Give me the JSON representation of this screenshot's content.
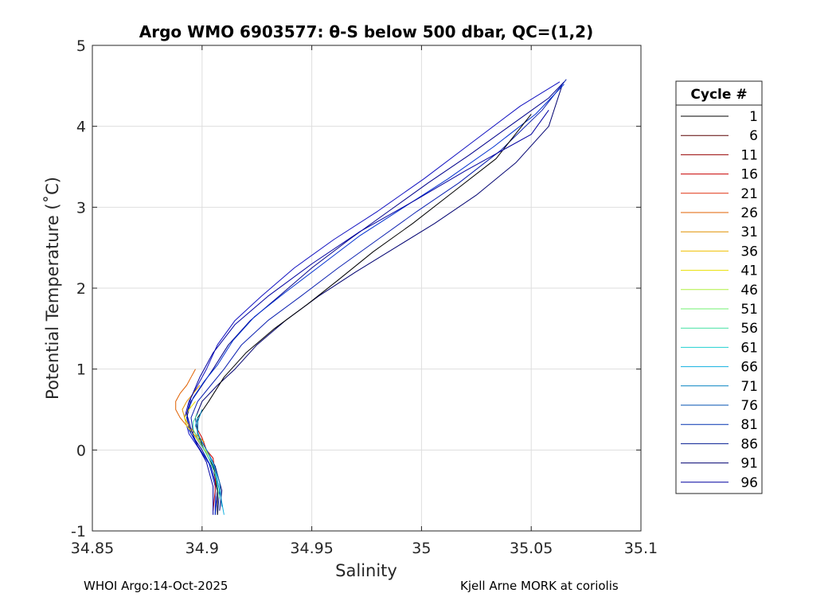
{
  "chart_data": {
    "type": "line",
    "title": "Argo WMO 6903577: θ-S below 500 dbar,  QC=(1,2)",
    "xlabel": "Salinity",
    "ylabel": "Potential Temperature (˚C)",
    "xlim": [
      34.85,
      35.1
    ],
    "ylim": [
      -1,
      5
    ],
    "xticks": [
      "34.85",
      "34.9",
      "34.95",
      "35",
      "35.05",
      "35.1"
    ],
    "yticks": [
      "-1",
      "0",
      "1",
      "2",
      "3",
      "4",
      "5"
    ],
    "grid": true,
    "legend": {
      "title": "Cycle #",
      "placement": "right-outside",
      "entries": [
        "1",
        "6",
        "11",
        "16",
        "21",
        "26",
        "31",
        "36",
        "41",
        "46",
        "51",
        "56",
        "61",
        "66",
        "71",
        "76",
        "81",
        "86",
        "91",
        "96"
      ],
      "colors": [
        "#000000",
        "#5a0000",
        "#960000",
        "#c80000",
        "#e03010",
        "#e06000",
        "#e09000",
        "#f0c000",
        "#e8e000",
        "#b0f040",
        "#70f070",
        "#40e0a0",
        "#20d0d0",
        "#10b0e0",
        "#0080c0",
        "#0050b0",
        "#0030b0",
        "#001a90",
        "#000070",
        "#0000a0"
      ]
    },
    "series": [
      {
        "color": "#00008b",
        "x": [
          34.906,
          34.907,
          34.904,
          34.9,
          34.895,
          34.893,
          34.895,
          34.9,
          34.905,
          34.912,
          34.922,
          34.935,
          34.95,
          34.967,
          34.985,
          35.003,
          35.022,
          35.04,
          35.058,
          35.065
        ],
        "y": [
          -0.8,
          -0.5,
          -0.2,
          0.0,
          0.2,
          0.4,
          0.6,
          0.8,
          1.0,
          1.3,
          1.6,
          1.9,
          2.25,
          2.6,
          2.95,
          3.3,
          3.65,
          4.0,
          4.35,
          4.55
        ]
      },
      {
        "color": "#0a1fb0",
        "x": [
          34.907,
          34.908,
          34.905,
          34.901,
          34.896,
          34.895,
          34.898,
          34.904,
          34.91,
          34.918,
          34.93,
          34.945,
          34.962,
          34.98,
          34.998,
          35.017,
          35.036,
          35.055,
          35.066
        ],
        "y": [
          -0.8,
          -0.5,
          -0.2,
          0.0,
          0.2,
          0.4,
          0.6,
          0.8,
          1.0,
          1.3,
          1.6,
          1.9,
          2.25,
          2.6,
          2.95,
          3.3,
          3.7,
          4.2,
          4.58
        ]
      },
      {
        "color": "#1010c0",
        "x": [
          34.906,
          34.907,
          34.904,
          34.899,
          34.894,
          34.892,
          34.894,
          34.898,
          34.902,
          34.907,
          34.915,
          34.927,
          34.942,
          34.96,
          34.98,
          35.001,
          35.023,
          35.045,
          35.063
        ],
        "y": [
          -0.78,
          -0.5,
          -0.2,
          0.0,
          0.2,
          0.4,
          0.6,
          0.8,
          1.0,
          1.3,
          1.6,
          1.9,
          2.25,
          2.6,
          2.95,
          3.35,
          3.8,
          4.25,
          4.55
        ]
      },
      {
        "color": "#000070",
        "x": [
          34.908,
          34.909,
          34.906,
          34.902,
          34.898,
          34.897,
          34.9,
          34.907,
          34.915,
          34.925,
          34.938,
          34.953,
          34.97,
          34.988,
          35.006,
          35.025,
          35.043,
          35.058,
          35.064
        ],
        "y": [
          -0.75,
          -0.5,
          -0.2,
          0.0,
          0.2,
          0.4,
          0.6,
          0.8,
          1.0,
          1.3,
          1.6,
          1.9,
          2.2,
          2.5,
          2.8,
          3.15,
          3.55,
          4.0,
          4.5
        ]
      },
      {
        "color": "#0030d0",
        "x": [
          34.906,
          34.906,
          34.903,
          34.898,
          34.894,
          34.893,
          34.896,
          34.901,
          34.907,
          34.914,
          34.924,
          34.938,
          34.955,
          34.972,
          34.992,
          35.012,
          35.033,
          35.052,
          35.065
        ],
        "y": [
          -0.8,
          -0.45,
          -0.15,
          0.05,
          0.25,
          0.45,
          0.65,
          0.85,
          1.05,
          1.35,
          1.65,
          1.95,
          2.3,
          2.65,
          3.0,
          3.35,
          3.75,
          4.15,
          4.52
        ]
      },
      {
        "color": "#000000",
        "x": [
          34.907,
          34.907,
          34.905,
          34.901,
          34.898,
          34.898,
          34.903,
          34.91,
          34.92,
          34.933,
          34.948,
          34.962,
          34.978,
          34.996,
          35.015,
          35.034,
          35.05
        ],
        "y": [
          -0.8,
          -0.5,
          -0.2,
          0.0,
          0.2,
          0.4,
          0.6,
          0.9,
          1.2,
          1.5,
          1.8,
          2.1,
          2.45,
          2.8,
          3.2,
          3.6,
          4.15
        ]
      },
      {
        "color": "#c80000",
        "x": [
          34.905,
          34.906,
          34.906,
          34.905,
          34.902,
          34.9,
          34.897
        ],
        "y": [
          -0.75,
          -0.5,
          -0.3,
          -0.1,
          0.0,
          0.15,
          0.3
        ]
      },
      {
        "color": "#e06000",
        "x": [
          34.9,
          34.896,
          34.893,
          34.89,
          34.888,
          34.888,
          34.89,
          34.893,
          34.895,
          34.897
        ],
        "y": [
          0.1,
          0.2,
          0.3,
          0.4,
          0.5,
          0.6,
          0.7,
          0.8,
          0.9,
          1.0
        ]
      },
      {
        "color": "#e09000",
        "x": [
          34.901,
          34.897,
          34.894,
          34.892,
          34.891,
          34.893,
          34.896,
          34.899
        ],
        "y": [
          0.1,
          0.2,
          0.3,
          0.4,
          0.5,
          0.6,
          0.7,
          0.8
        ]
      },
      {
        "color": "#e8e000",
        "x": [
          34.904,
          34.9,
          34.896,
          34.893,
          34.892,
          34.894,
          34.897
        ],
        "y": [
          -0.1,
          0.05,
          0.2,
          0.3,
          0.4,
          0.5,
          0.6
        ]
      },
      {
        "color": "#40e0a0",
        "x": [
          34.908,
          34.906,
          34.903,
          34.899,
          34.896,
          34.896,
          34.898
        ],
        "y": [
          -0.6,
          -0.3,
          -0.1,
          0.1,
          0.25,
          0.35,
          0.45
        ]
      },
      {
        "color": "#10b0e0",
        "x": [
          34.91,
          34.908,
          34.906,
          34.903,
          34.899,
          34.897,
          34.898
        ],
        "y": [
          -0.8,
          -0.5,
          -0.25,
          -0.05,
          0.15,
          0.3,
          0.4
        ]
      },
      {
        "color": "#0080c0",
        "x": [
          34.909,
          34.908,
          34.905,
          34.901,
          34.898,
          34.898,
          34.9
        ],
        "y": [
          -0.7,
          -0.4,
          -0.15,
          0.05,
          0.2,
          0.35,
          0.5
        ]
      },
      {
        "color": "#0000a0",
        "x": [
          34.905,
          34.905,
          34.902,
          34.898,
          34.895,
          34.893,
          34.895,
          34.899,
          34.905,
          34.915,
          34.93,
          34.95,
          34.972,
          34.998,
          35.02,
          35.05,
          35.058
        ],
        "y": [
          -0.8,
          -0.45,
          -0.15,
          0.05,
          0.25,
          0.45,
          0.65,
          0.9,
          1.2,
          1.55,
          1.9,
          2.3,
          2.7,
          3.1,
          3.45,
          3.9,
          4.2
        ]
      }
    ]
  },
  "footer": {
    "left": "WHOI Argo:14-Oct-2025",
    "right": "Kjell Arne MORK at coriolis"
  }
}
